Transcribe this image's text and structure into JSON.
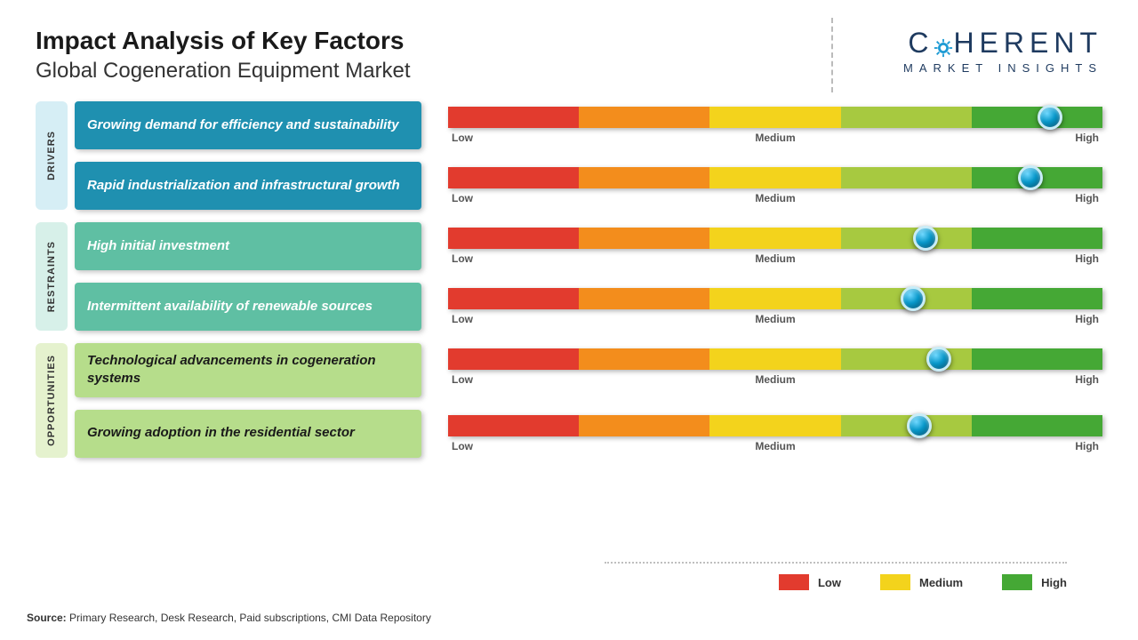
{
  "title": "Impact Analysis of Key Factors",
  "subtitle": "Global Cogeneration Equipment Market",
  "logo": {
    "main": "C HERENT",
    "sub": "MARKET INSIGHTS"
  },
  "scale": {
    "low_label": "Low",
    "mid_label": "Medium",
    "high_label": "High",
    "segment_colors": [
      "#e23b2e",
      "#f38d1c",
      "#f3d31c",
      "#a7c940",
      "#45a835"
    ]
  },
  "sections": [
    {
      "name": "DRIVERS",
      "tab_color": "#d6eef5",
      "box_bg": "#1f90b0",
      "box_text_color": "#ffffff",
      "factors": [
        {
          "text": "Growing demand for efficiency and sustainability",
          "marker_pct": 92
        },
        {
          "text": "Rapid industrialization and infrastructural growth",
          "marker_pct": 89
        }
      ]
    },
    {
      "name": "RESTRAINTS",
      "tab_color": "#d7f0e9",
      "box_bg": "#5fbfa3",
      "box_text_color": "#ffffff",
      "factors": [
        {
          "text": "High initial investment",
          "marker_pct": 73
        },
        {
          "text": "Intermittent availability of renewable sources",
          "marker_pct": 71
        }
      ]
    },
    {
      "name": "OPPORTUNITIES",
      "tab_color": "#e5f2ce",
      "box_bg": "#b6dd8b",
      "box_text_color": "#1a1a1a",
      "factors": [
        {
          "text": "Technological advancements in cogeneration systems",
          "marker_pct": 75
        },
        {
          "text": "Growing adoption in the residential sector",
          "marker_pct": 72
        }
      ]
    }
  ],
  "legend": {
    "items": [
      {
        "label": "Low",
        "color": "#e23b2e"
      },
      {
        "label": "Medium",
        "color": "#f3d31c"
      },
      {
        "label": "High",
        "color": "#45a835"
      }
    ]
  },
  "source_label": "Source:",
  "source_text": " Primary Research, Desk Research, Paid subscriptions, CMI Data Repository"
}
